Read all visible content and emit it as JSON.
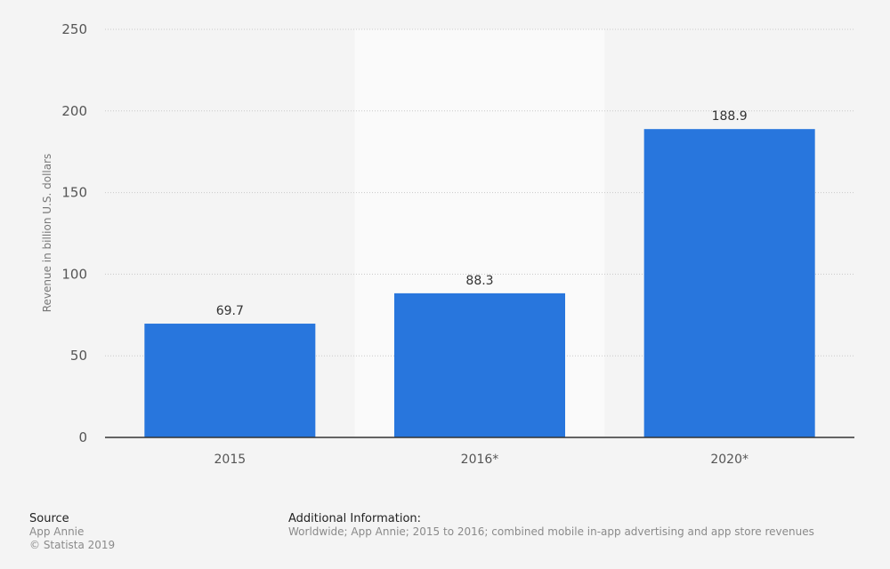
{
  "chart_data": {
    "type": "bar",
    "categories": [
      "2015",
      "2016*",
      "2020*"
    ],
    "values": [
      69.7,
      88.3,
      188.9
    ],
    "data_labels": [
      "69.7",
      "88.3",
      "188.9"
    ],
    "title": "",
    "xlabel": "",
    "ylabel": "Revenue in billion U.S. dollars",
    "ylim": [
      0,
      250
    ],
    "yticks": [
      0,
      50,
      100,
      150,
      200,
      250
    ],
    "grid": true,
    "highlighted_category": "2016*",
    "bar_color": "#2876dd"
  },
  "footer": {
    "source_heading": "Source",
    "source": "App Annie",
    "copyright": "© Statista 2019",
    "info_heading": "Additional Information:",
    "info": "Worldwide; App Annie; 2015 to 2016; combined mobile in-app advertising and app store revenues"
  }
}
